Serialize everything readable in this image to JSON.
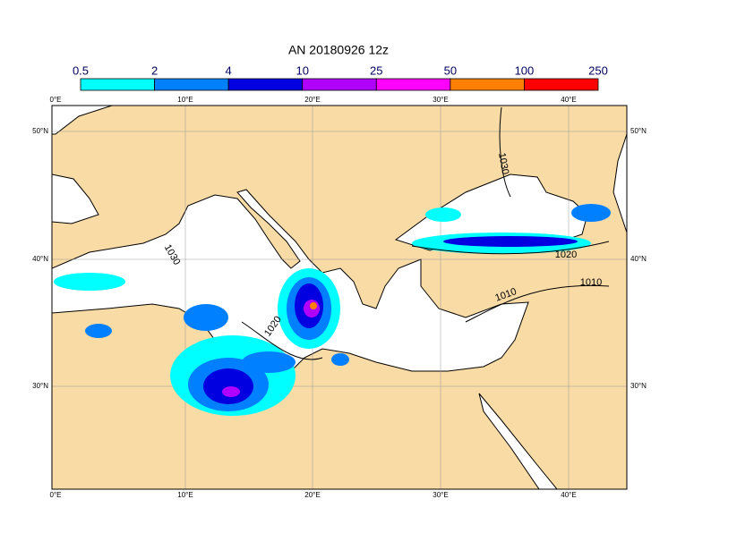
{
  "title": "AN  20180926 12z",
  "colorbar": {
    "labels": [
      "0.5",
      "2",
      "4",
      "10",
      "25",
      "50",
      "100",
      "250"
    ],
    "colors": [
      "#00ffff",
      "#0080ff",
      "#0000e0",
      "#b000ff",
      "#ff00ff",
      "#ff8000",
      "#ff0000"
    ]
  },
  "axes": {
    "top": [
      "0°E",
      "10°E",
      "20°E",
      "30°E",
      "40°E"
    ],
    "bottom": [
      "0°E",
      "10°E",
      "20°E",
      "30°E",
      "40°E"
    ],
    "left": [
      "50°N",
      "40°N",
      "30°N"
    ],
    "right": [
      "50°N",
      "40°N",
      "30°N"
    ]
  },
  "isobar_labels": [
    "1030",
    "1030",
    "1020",
    "1020",
    "1010",
    "1010"
  ]
}
